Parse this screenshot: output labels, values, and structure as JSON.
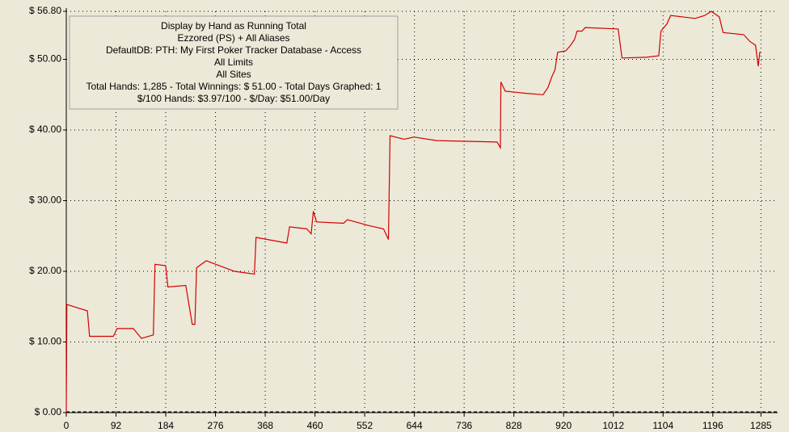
{
  "chart_data": {
    "type": "line",
    "annotations": [
      "Display by Hand as Running Total",
      "Ezzored (PS) + All Aliases",
      "DefaultDB: PTH: My First Poker Tracker Database - Access",
      "All Limits",
      "All Sites",
      "Total Hands: 1,285 - Total Winnings: $ 51.00 - Total Days Graphed: 1",
      "$/100 Hands: $3.97/100 - $/Day: $51.00/Day"
    ],
    "color": "#d40000",
    "x": [
      0,
      1,
      39,
      43,
      87,
      94,
      124,
      139,
      161,
      164,
      184,
      188,
      221,
      233,
      238,
      241,
      259,
      311,
      348,
      351,
      408,
      413,
      445,
      453,
      457,
      463,
      513,
      520,
      558,
      587,
      596,
      599,
      625,
      643,
      685,
      797,
      803,
      804,
      812,
      849,
      882,
      891,
      898,
      904,
      909,
      924,
      933,
      940,
      945,
      954,
      960,
      1021,
      1028,
      1073,
      1096,
      1100,
      1111,
      1118,
      1163,
      1181,
      1193,
      1208,
      1215,
      1253,
      1265,
      1275,
      1280,
      1283,
      1285
    ],
    "values": [
      0,
      15.3,
      14.4,
      10.8,
      10.8,
      11.9,
      11.9,
      10.5,
      11,
      21,
      20.8,
      17.8,
      18,
      12.5,
      12.5,
      20.5,
      21.5,
      20,
      19.6,
      24.8,
      24,
      26.3,
      26,
      25.3,
      28.5,
      27,
      26.8,
      27.3,
      26.5,
      26,
      24.5,
      39.2,
      38.7,
      39,
      38.5,
      38.3,
      37.5,
      46.8,
      45.5,
      45.2,
      45,
      46,
      47.5,
      48.5,
      51,
      51.2,
      52,
      52.8,
      54,
      54,
      54.5,
      54.3,
      50.2,
      50.3,
      50.5,
      54,
      55,
      56.2,
      55.8,
      56.2,
      56.8,
      56,
      53.8,
      53.5,
      52.5,
      52,
      49,
      51,
      51
    ],
    "xlim": [
      0,
      1316
    ],
    "xticks": [
      0,
      92,
      184,
      276,
      368,
      460,
      552,
      644,
      736,
      828,
      920,
      1012,
      1104,
      1196,
      1285
    ],
    "ylim": [
      0,
      56.8
    ],
    "yticks": [
      {
        "value": 0,
        "label": "$ 0.00"
      },
      {
        "value": 10,
        "label": "$ 10.00"
      },
      {
        "value": 20,
        "label": "$ 20.00"
      },
      {
        "value": 30,
        "label": "$ 30.00"
      },
      {
        "value": 40,
        "label": "$ 40.00"
      },
      {
        "value": 50,
        "label": "$ 50.00"
      },
      {
        "value": 56.8,
        "label": "$ 56.80"
      }
    ],
    "grid": true
  }
}
